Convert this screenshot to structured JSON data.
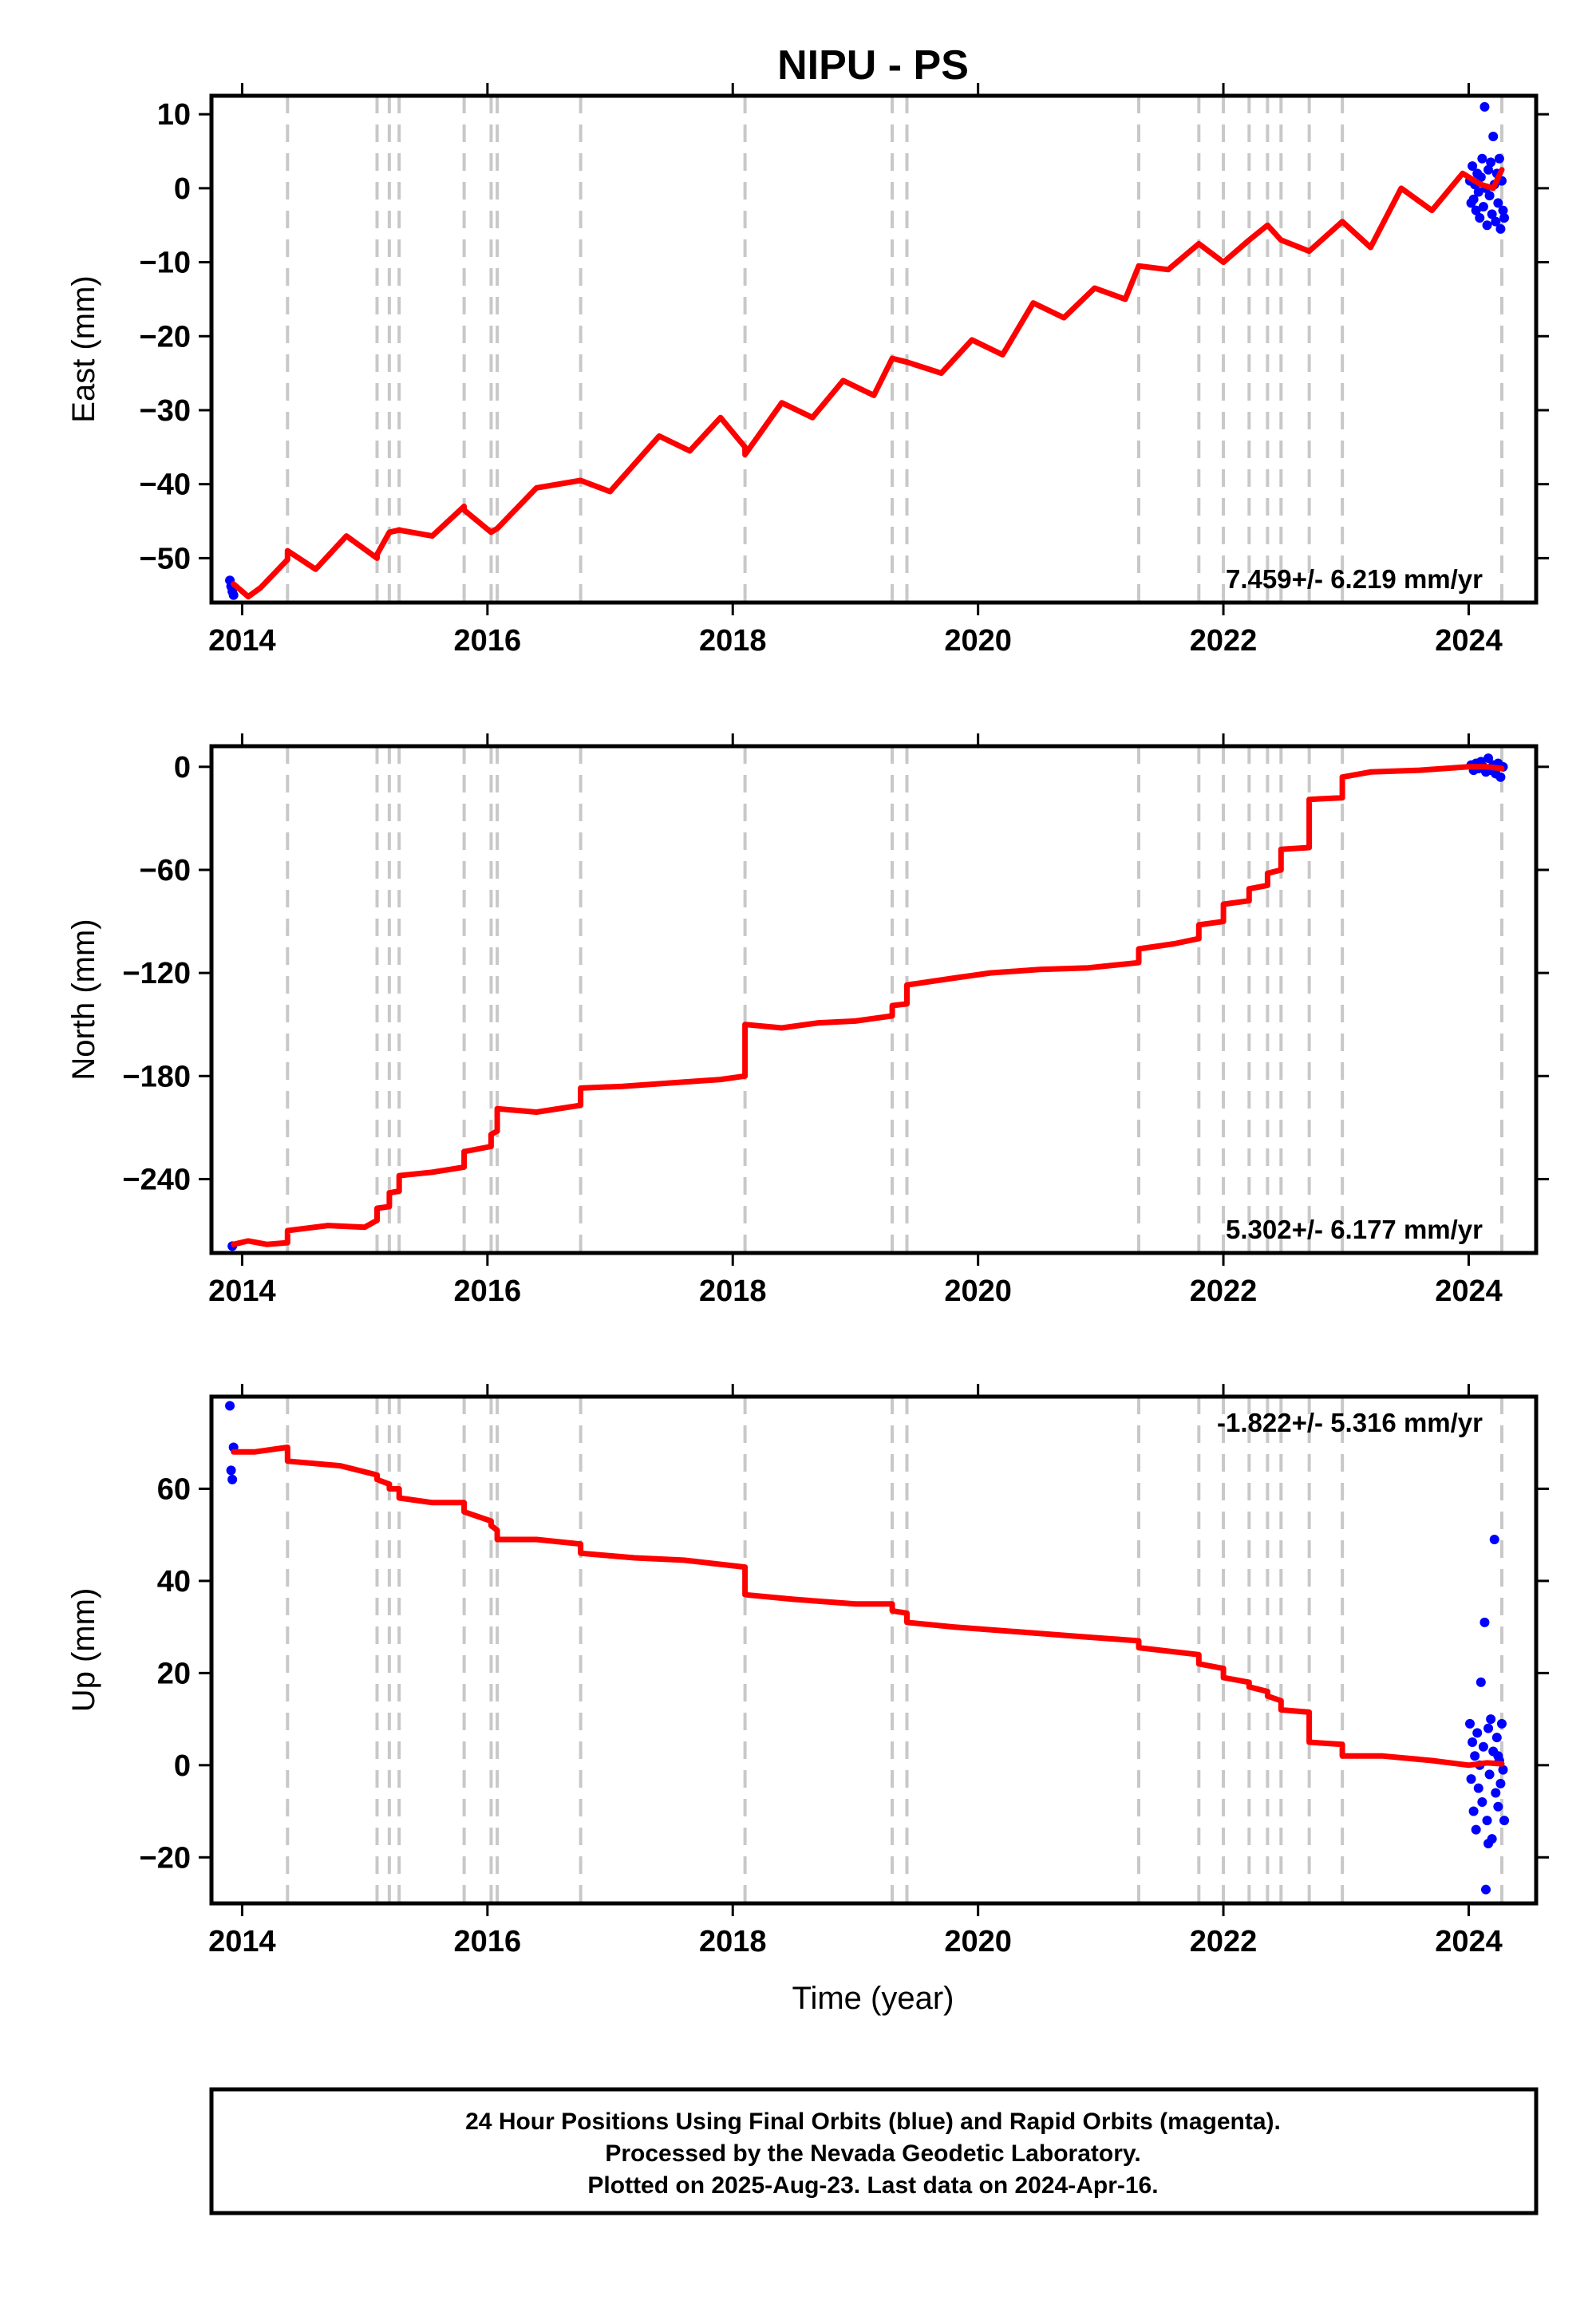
{
  "title": "NIPU - PS",
  "xlabel": "Time (year)",
  "footer": {
    "line1": "24 Hour Positions Using Final Orbits (blue) and Rapid Orbits (magenta).",
    "line2": "Processed by the Nevada Geodetic Laboratory.",
    "line3": "Plotted on 2025-Aug-23. Last data on 2024-Apr-16."
  },
  "colors": {
    "model": "#ff0000",
    "final_orbits": "#0000ff",
    "event_lines": "#c8c8c8",
    "frame": "#000000"
  },
  "chart_data": [
    {
      "type": "line",
      "component": "East",
      "ylabel": "East (mm)",
      "xlim": [
        2013.75,
        2024.55
      ],
      "ylim": [
        -56,
        12.5
      ],
      "xticks": [
        2014,
        2016,
        2018,
        2020,
        2022,
        2024
      ],
      "yticks": [
        -50,
        -40,
        -30,
        -20,
        -10,
        0,
        10
      ],
      "ytick_labels": [
        "−50",
        "−40",
        "−30",
        "−20",
        "−10",
        "0",
        "10"
      ],
      "rate_text": "7.459+/- 6.219 mm/yr",
      "rate_anchor": "bottom",
      "event_lines": [
        2014.37,
        2015.1,
        2015.2,
        2015.28,
        2015.81,
        2016.03,
        2016.08,
        2016.76,
        2018.1,
        2019.3,
        2019.42,
        2021.31,
        2021.8,
        2022.0,
        2022.21,
        2022.36,
        2022.47,
        2022.7,
        2022.97,
        2024.27
      ],
      "model_series": {
        "name": "Rapid/Final model",
        "x": [
          2013.93,
          2014.05,
          2014.15,
          2014.37,
          2014.37,
          2014.6,
          2014.85,
          2015.1,
          2015.1,
          2015.2,
          2015.28,
          2015.55,
          2015.81,
          2015.81,
          2016.03,
          2016.08,
          2016.4,
          2016.76,
          2017.0,
          2017.4,
          2017.65,
          2017.9,
          2018.1,
          2018.1,
          2018.4,
          2018.65,
          2018.9,
          2019.15,
          2019.3,
          2019.42,
          2019.7,
          2019.95,
          2020.2,
          2020.45,
          2020.7,
          2020.95,
          2021.2,
          2021.31,
          2021.55,
          2021.8,
          2022.0,
          2022.21,
          2022.36,
          2022.47,
          2022.7,
          2022.97,
          2023.2,
          2023.45,
          2023.7,
          2023.95,
          2024.1,
          2024.2,
          2024.27
        ],
        "y": [
          -53.5,
          -55.2,
          -54.0,
          -50.2,
          -49.0,
          -51.5,
          -47.0,
          -50.0,
          -49.5,
          -46.5,
          -46.2,
          -47.0,
          -43.0,
          -43.5,
          -46.5,
          -46.0,
          -40.5,
          -39.5,
          -41.0,
          -33.5,
          -35.5,
          -31.0,
          -35.0,
          -36.0,
          -29.0,
          -31.0,
          -26.0,
          -28.0,
          -23.0,
          -23.5,
          -25.0,
          -20.5,
          -22.5,
          -15.5,
          -17.5,
          -13.5,
          -15.0,
          -10.5,
          -11.0,
          -7.5,
          -10.0,
          -7.0,
          -5.0,
          -7.0,
          -8.5,
          -4.5,
          -8.0,
          0.0,
          -3.0,
          2.0,
          0.5,
          0.0,
          2.5
        ]
      },
      "final_orbit_points": {
        "name": "Final Orbits",
        "x": [
          2013.9,
          2013.91,
          2013.92,
          2013.93,
          2024.01,
          2024.02,
          2024.03,
          2024.04,
          2024.05,
          2024.06,
          2024.07,
          2024.08,
          2024.09,
          2024.1,
          2024.11,
          2024.12,
          2024.13,
          2024.14,
          2024.15,
          2024.16,
          2024.17,
          2024.18,
          2024.19,
          2024.2,
          2024.21,
          2024.22,
          2024.23,
          2024.24,
          2024.25,
          2024.26,
          2024.27,
          2024.28,
          2024.29
        ],
        "y": [
          -53.0,
          -53.8,
          -54.5,
          -55.0,
          1.0,
          -2.0,
          3.0,
          -1.5,
          0.5,
          -3.0,
          2.0,
          -0.5,
          -4.0,
          1.5,
          4.0,
          -2.5,
          11.0,
          0.0,
          -5.0,
          2.5,
          -1.0,
          3.5,
          -3.5,
          7.0,
          0.5,
          -4.5,
          2.0,
          -2.0,
          4.0,
          -5.5,
          1.0,
          -3.0,
          -4.0
        ]
      }
    },
    {
      "type": "line",
      "component": "North",
      "ylabel": "North (mm)",
      "xlim": [
        2013.75,
        2024.55
      ],
      "ylim": [
        -283,
        12
      ],
      "xticks": [
        2014,
        2016,
        2018,
        2020,
        2022,
        2024
      ],
      "yticks": [
        -240,
        -180,
        -120,
        -60,
        0
      ],
      "ytick_labels": [
        "−240",
        "−180",
        "−120",
        "−60",
        "0"
      ],
      "rate_text": "5.302+/- 6.177 mm/yr",
      "rate_anchor": "bottom",
      "event_lines": [
        2014.37,
        2015.1,
        2015.2,
        2015.28,
        2015.81,
        2016.03,
        2016.08,
        2016.76,
        2018.1,
        2019.3,
        2019.42,
        2021.31,
        2021.8,
        2022.0,
        2022.21,
        2022.36,
        2022.47,
        2022.7,
        2022.97,
        2024.27
      ],
      "model_series": {
        "name": "Rapid/Final model",
        "x": [
          2013.93,
          2014.05,
          2014.2,
          2014.37,
          2014.37,
          2014.7,
          2015.0,
          2015.1,
          2015.1,
          2015.2,
          2015.2,
          2015.28,
          2015.28,
          2015.55,
          2015.81,
          2015.81,
          2016.03,
          2016.03,
          2016.08,
          2016.08,
          2016.4,
          2016.76,
          2016.76,
          2017.1,
          2017.5,
          2017.9,
          2018.1,
          2018.1,
          2018.4,
          2018.7,
          2019.0,
          2019.3,
          2019.3,
          2019.42,
          2019.42,
          2019.8,
          2020.1,
          2020.5,
          2020.9,
          2021.31,
          2021.31,
          2021.6,
          2021.8,
          2021.8,
          2022.0,
          2022.0,
          2022.21,
          2022.21,
          2022.36,
          2022.36,
          2022.47,
          2022.47,
          2022.7,
          2022.7,
          2022.97,
          2022.97,
          2023.2,
          2023.6,
          2024.0,
          2024.15,
          2024.27
        ],
        "y": [
          -278,
          -276,
          -278,
          -277,
          -270,
          -267,
          -268,
          -264,
          -257,
          -256,
          -248,
          -247,
          -238,
          -236,
          -233,
          -224,
          -221,
          -214,
          -212,
          -199,
          -201,
          -197,
          -187,
          -186,
          -184,
          -182,
          -180,
          -150,
          -152,
          -149,
          -148,
          -145,
          -139,
          -138,
          -127,
          -123,
          -120,
          -118,
          -117,
          -114,
          -106,
          -103,
          -100,
          -92,
          -90,
          -80,
          -78,
          -71,
          -69,
          -62,
          -60,
          -48,
          -47,
          -19,
          -18,
          -6,
          -3,
          -2,
          0,
          0,
          -1
        ]
      },
      "final_orbit_points": {
        "name": "Final Orbits",
        "x": [
          2013.92,
          2024.02,
          2024.04,
          2024.06,
          2024.08,
          2024.1,
          2024.12,
          2024.14,
          2024.16,
          2024.18,
          2024.2,
          2024.22,
          2024.24,
          2024.26,
          2024.28
        ],
        "y": [
          -279,
          1,
          -2,
          2,
          -1,
          3,
          0,
          -3,
          5,
          -2,
          1,
          -4,
          2,
          -6,
          0
        ]
      }
    },
    {
      "type": "line",
      "component": "Up",
      "ylabel": "Up (mm)",
      "xlim": [
        2013.75,
        2024.55
      ],
      "ylim": [
        -30,
        80
      ],
      "xticks": [
        2014,
        2016,
        2018,
        2020,
        2022,
        2024
      ],
      "yticks": [
        -20,
        0,
        20,
        40,
        60
      ],
      "ytick_labels": [
        "−20",
        "0",
        "20",
        "40",
        "60"
      ],
      "rate_text": "-1.822+/- 5.316 mm/yr",
      "rate_anchor": "top",
      "event_lines": [
        2014.37,
        2015.1,
        2015.2,
        2015.28,
        2015.81,
        2016.03,
        2016.08,
        2016.76,
        2018.1,
        2019.3,
        2019.42,
        2021.31,
        2021.8,
        2022.0,
        2022.21,
        2022.36,
        2022.47,
        2022.7,
        2022.97,
        2024.27
      ],
      "model_series": {
        "name": "Rapid/Final model",
        "x": [
          2013.93,
          2014.1,
          2014.37,
          2014.37,
          2014.8,
          2015.1,
          2015.1,
          2015.2,
          2015.2,
          2015.28,
          2015.28,
          2015.55,
          2015.81,
          2015.81,
          2016.03,
          2016.03,
          2016.08,
          2016.08,
          2016.4,
          2016.76,
          2016.76,
          2017.2,
          2017.6,
          2018.1,
          2018.1,
          2018.5,
          2019.0,
          2019.3,
          2019.3,
          2019.42,
          2019.42,
          2019.8,
          2020.3,
          2020.8,
          2021.31,
          2021.31,
          2021.8,
          2021.8,
          2022.0,
          2022.0,
          2022.21,
          2022.21,
          2022.36,
          2022.36,
          2022.47,
          2022.47,
          2022.7,
          2022.7,
          2022.97,
          2022.97,
          2023.3,
          2023.7,
          2024.0,
          2024.15,
          2024.27
        ],
        "y": [
          68,
          68,
          69,
          66,
          65,
          63,
          62,
          61,
          60,
          60,
          58,
          57,
          57,
          55,
          53,
          52,
          51,
          49,
          49,
          48,
          46,
          45,
          44.5,
          43,
          37,
          36,
          35,
          35,
          33.5,
          33,
          31,
          30,
          29,
          28,
          27,
          25.5,
          24,
          22,
          21,
          19,
          18,
          17,
          16,
          15,
          14,
          12,
          11.5,
          5,
          4.5,
          2,
          2,
          1,
          0,
          0.5,
          0.3
        ]
      },
      "final_orbit_points": {
        "name": "Final Orbits",
        "x": [
          2013.9,
          2013.91,
          2013.92,
          2013.93,
          2024.01,
          2024.02,
          2024.03,
          2024.04,
          2024.05,
          2024.06,
          2024.07,
          2024.08,
          2024.09,
          2024.1,
          2024.11,
          2024.12,
          2024.13,
          2024.14,
          2024.15,
          2024.16,
          2024.17,
          2024.18,
          2024.19,
          2024.2,
          2024.21,
          2024.22,
          2024.23,
          2024.24,
          2024.25,
          2024.26,
          2024.27,
          2024.28,
          2024.29,
          2024.16,
          2024.24
        ],
        "y": [
          78,
          64,
          62,
          69,
          9,
          -3,
          5,
          -10,
          2,
          -14,
          7,
          -5,
          0,
          18,
          -8,
          4,
          31,
          -27,
          -12,
          8,
          -2,
          10,
          -16,
          3,
          49,
          -6,
          6,
          -9,
          1,
          -4,
          9,
          -1,
          -12,
          -17,
          2
        ]
      }
    }
  ]
}
